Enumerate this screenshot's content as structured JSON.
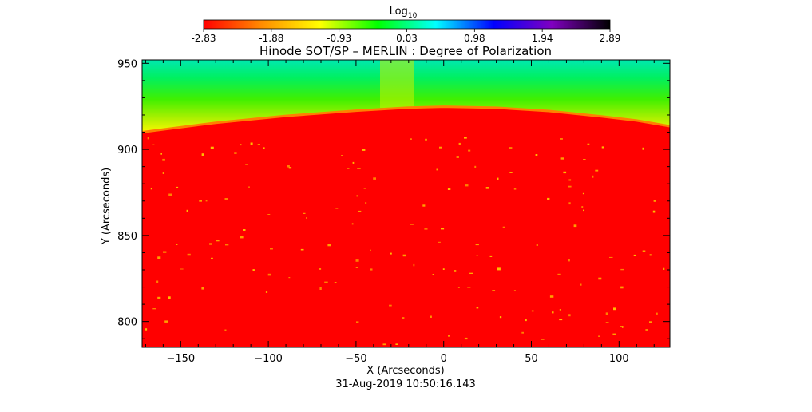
{
  "chart_data": {
    "type": "heatmap",
    "title": "Hinode SOT/SP – MERLIN : Degree of Polarization",
    "xlabel": "X (Arcseconds)",
    "ylabel": "Y (Arcseconds)",
    "xlim": [
      -172,
      129
    ],
    "ylim": [
      785,
      952
    ],
    "x_ticks": [
      -150,
      -100,
      -50,
      0,
      50,
      100
    ],
    "y_ticks": [
      800,
      850,
      900,
      950
    ],
    "limb_profile": {
      "x": [
        -172,
        -130,
        -90,
        -50,
        -20,
        0,
        30,
        60,
        90,
        110,
        129
      ],
      "y": [
        910,
        915.5,
        919.5,
        922.5,
        924.3,
        924.8,
        924.2,
        922.3,
        919.2,
        916.8,
        913.5
      ]
    },
    "colorbar": {
      "label_base": "Log",
      "label_subscript": "10",
      "min": -2.83,
      "max": 2.89,
      "ticks": [
        "-2.83",
        "-1.88",
        "-0.93",
        "0.03",
        "0.98",
        "1.94",
        "2.89"
      ],
      "colors": [
        "#ff0000",
        "#ff8c00",
        "#ffff00",
        "#00ff00",
        "#00ffff",
        "#0000ff",
        "#8000c0",
        "#000000"
      ]
    },
    "timestamp": "31-Aug-2019 10:50:16.143",
    "grid": false
  }
}
